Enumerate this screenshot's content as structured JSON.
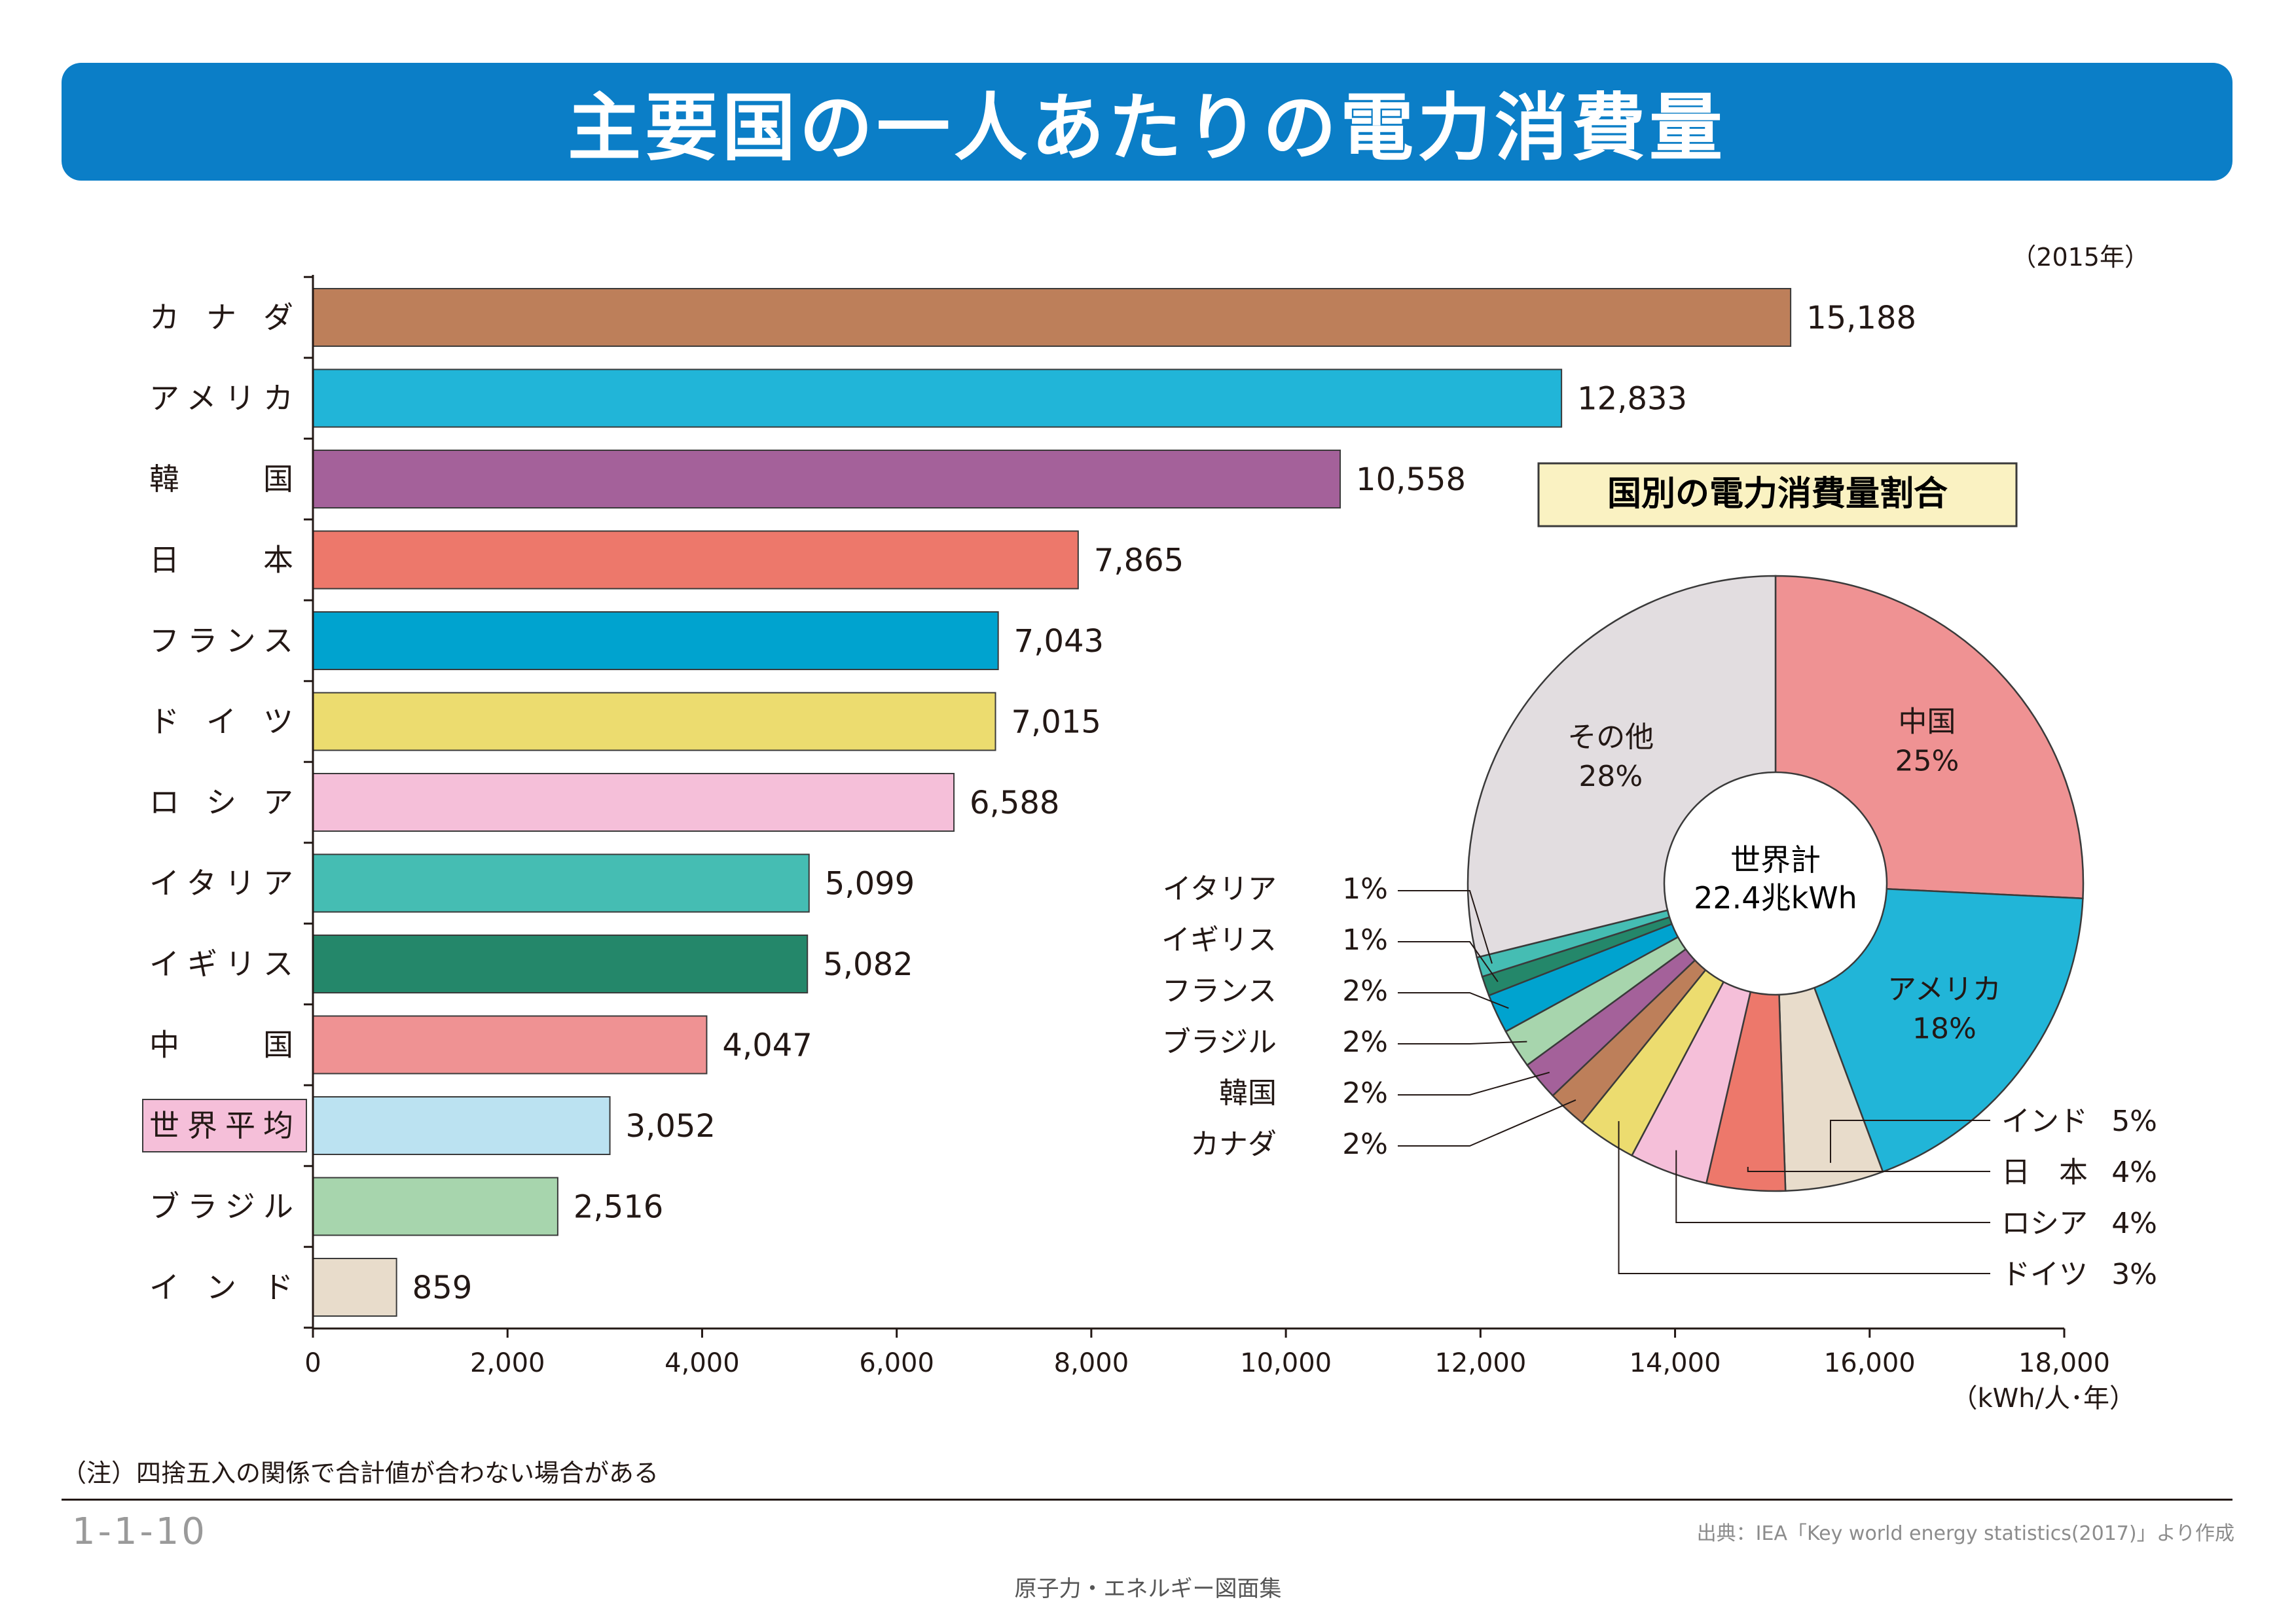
{
  "title": "主要国の一人あたりの電力消費量",
  "year_note": "（2015年）",
  "note": "（注）四捨五入の関係で合計値が合わない場合がある",
  "figure_id": "1-1-10",
  "source": "出典：IEA「Key world energy statistics(2017)」より作成",
  "footer": "原子力・エネルギー図面集",
  "chart_data": [
    {
      "type": "bar",
      "orientation": "horizontal",
      "categories": [
        "カ ナ ダ",
        "アメリカ",
        "韓　　国",
        "日　　本",
        "フランス",
        "ド イ ツ",
        "ロ シ ア",
        "イタリア",
        "イギリス",
        "中　　国",
        "世界平均",
        "ブラジル",
        "イ ン ド"
      ],
      "values": [
        15188,
        12833,
        10558,
        7865,
        7043,
        7015,
        6588,
        5099,
        5082,
        4047,
        3052,
        2516,
        859
      ],
      "value_labels": [
        "15,188",
        "12,833",
        "10,558",
        "7,865",
        "7,043",
        "7,015",
        "6,588",
        "5,099",
        "5,082",
        "4,047",
        "3,052",
        "2,516",
        "859"
      ],
      "colors": [
        "#bd7f5a",
        "#21b5d8",
        "#a4619a",
        "#ed786b",
        "#00a3cf",
        "#ecdc6f",
        "#f5bfd9",
        "#45bdb3",
        "#24876a",
        "#ef9293",
        "#bbe2f1",
        "#a7d5ad",
        "#e8dccb"
      ],
      "highlight_category": "世界平均",
      "highlight_color": "#f5bfd9",
      "xlim": [
        0,
        18000
      ],
      "xticks": [
        0,
        2000,
        4000,
        6000,
        8000,
        10000,
        12000,
        14000,
        16000,
        18000
      ],
      "xtick_labels": [
        "0",
        "2,000",
        "4,000",
        "6,000",
        "8,000",
        "10,000",
        "12,000",
        "14,000",
        "16,000",
        "18,000"
      ],
      "xlabel": "（kWh/人･年）"
    },
    {
      "type": "pie",
      "title": "国別の電力消費量割合",
      "title_box_color": "#faf2c2",
      "center_label": [
        "世界計",
        "22.4兆kWh"
      ],
      "slices": [
        {
          "label": "中国",
          "value": 25,
          "color": "#ef9293"
        },
        {
          "label": "アメリカ",
          "value": 18,
          "color": "#21b5d8"
        },
        {
          "label": "インド",
          "value": 5,
          "color": "#e8dccb"
        },
        {
          "label": "日　本",
          "value": 4,
          "color": "#ed786b"
        },
        {
          "label": "ロシア",
          "value": 4,
          "color": "#f5bfd9"
        },
        {
          "label": "ドイツ",
          "value": 3,
          "color": "#ecdc6f"
        },
        {
          "label": "カナダ",
          "value": 2,
          "color": "#bd7f5a"
        },
        {
          "label": "韓国",
          "value": 2,
          "color": "#a4619a"
        },
        {
          "label": "ブラジル",
          "value": 2,
          "color": "#a7d5ad"
        },
        {
          "label": "フランス",
          "value": 2,
          "color": "#00a3cf"
        },
        {
          "label": "イギリス",
          "value": 1,
          "color": "#24876a"
        },
        {
          "label": "イタリア",
          "value": 1,
          "color": "#45bdb3"
        },
        {
          "label": "その他",
          "value": 28,
          "color": "#e2dde0"
        }
      ],
      "value_labels": [
        "25%",
        "18%",
        "5%",
        "4%",
        "4%",
        "3%",
        "2%",
        "2%",
        "2%",
        "2%",
        "1%",
        "1%",
        "28%"
      ]
    }
  ]
}
